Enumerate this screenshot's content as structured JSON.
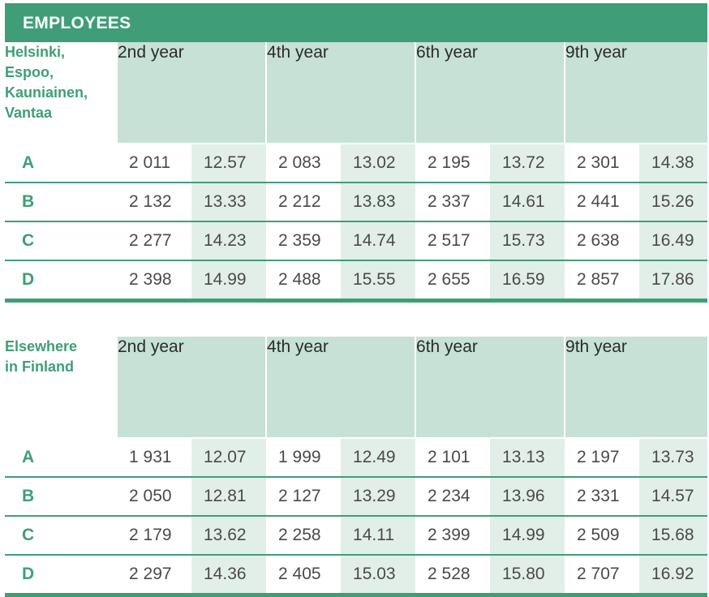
{
  "header": {
    "title": "EMPLOYEES"
  },
  "tables": [
    {
      "region_lines": [
        "Helsinki,",
        "Espoo,",
        "Kauniainen,",
        "Vantaa"
      ],
      "years": [
        "2nd year",
        "4th year",
        "6th year",
        "9th year"
      ],
      "rows": [
        {
          "grade": "A",
          "values": [
            "2 011",
            "12.57",
            "2 083",
            "13.02",
            "2 195",
            "13.72",
            "2 301",
            "14.38"
          ]
        },
        {
          "grade": "B",
          "values": [
            "2 132",
            "13.33",
            "2 212",
            "13.83",
            "2 337",
            "14.61",
            "2 441",
            "15.26"
          ]
        },
        {
          "grade": "C",
          "values": [
            "2 277",
            "14.23",
            "2 359",
            "14.74",
            "2 517",
            "15.73",
            "2 638",
            "16.49"
          ]
        },
        {
          "grade": "D",
          "values": [
            "2 398",
            "14.99",
            "2 488",
            "15.55",
            "2 655",
            "16.59",
            "2 857",
            "17.86"
          ]
        }
      ]
    },
    {
      "region_lines": [
        "Elsewhere",
        "in Finland"
      ],
      "years": [
        "2nd year",
        "4th year",
        "6th year",
        "9th year"
      ],
      "rows": [
        {
          "grade": "A",
          "values": [
            "1 931",
            "12.07",
            "1 999",
            "12.49",
            "2 101",
            "13.13",
            "2 197",
            "13.73"
          ]
        },
        {
          "grade": "B",
          "values": [
            "2 050",
            "12.81",
            "2 127",
            "13.29",
            "2 234",
            "13.96",
            "2 331",
            "14.57"
          ]
        },
        {
          "grade": "C",
          "values": [
            "2 179",
            "13.62",
            "2 258",
            "14.11",
            "2 399",
            "14.99",
            "2 509",
            "15.68"
          ]
        },
        {
          "grade": "D",
          "values": [
            "2 297",
            "14.36",
            "2 405",
            "15.03",
            "2 528",
            "15.80",
            "2 707",
            "16.92"
          ]
        }
      ]
    }
  ]
}
